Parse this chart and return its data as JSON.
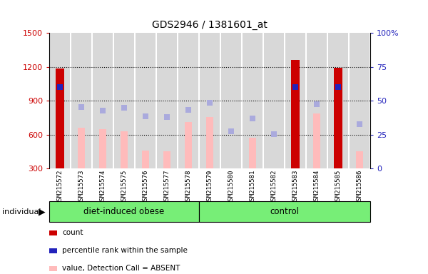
{
  "title": "GDS2946 / 1381601_at",
  "samples": [
    "GSM215572",
    "GSM215573",
    "GSM215574",
    "GSM215575",
    "GSM215576",
    "GSM215577",
    "GSM215578",
    "GSM215579",
    "GSM215580",
    "GSM215581",
    "GSM215582",
    "GSM215583",
    "GSM215584",
    "GSM215585",
    "GSM215586"
  ],
  "n_obese": 7,
  "n_control": 8,
  "count_values": [
    1185,
    null,
    null,
    null,
    null,
    null,
    null,
    null,
    null,
    null,
    null,
    1260,
    null,
    1190,
    null
  ],
  "percentile_rank_values": [
    1020,
    null,
    null,
    null,
    null,
    null,
    null,
    null,
    null,
    null,
    null,
    1020,
    null,
    1020,
    null
  ],
  "absent_value_bars": [
    null,
    660,
    650,
    630,
    460,
    455,
    710,
    755,
    290,
    575,
    285,
    null,
    790,
    null,
    455
  ],
  "absent_rank_squares": [
    null,
    845,
    815,
    840,
    760,
    755,
    820,
    880,
    630,
    745,
    605,
    null,
    870,
    null,
    690
  ],
  "ylim_left": [
    300,
    1500
  ],
  "yticks_left": [
    300,
    600,
    900,
    1200,
    1500
  ],
  "yticks_right": [
    0,
    25,
    50,
    75,
    100
  ],
  "ylim_right": [
    0,
    100
  ],
  "count_color": "#cc0000",
  "percentile_color": "#2222bb",
  "absent_value_color": "#ffbbbb",
  "absent_rank_color": "#aaaadd",
  "col_bg_color": "#d8d8d8",
  "chart_bg_color": "#ffffff",
  "group_bg_color": "#77ee77",
  "grid_vals": [
    600,
    900,
    1200
  ],
  "legend_items": [
    {
      "label": "count",
      "color": "#cc0000"
    },
    {
      "label": "percentile rank within the sample",
      "color": "#2222bb"
    },
    {
      "label": "value, Detection Call = ABSENT",
      "color": "#ffbbbb"
    },
    {
      "label": "rank, Detection Call = ABSENT",
      "color": "#aaaadd"
    }
  ]
}
